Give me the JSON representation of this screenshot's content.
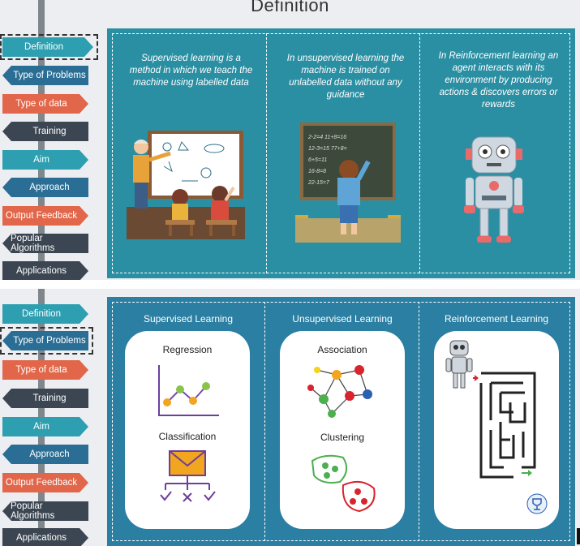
{
  "slide1": {
    "title": "Definition",
    "nav": [
      "Definition",
      "Type of Problems",
      "Type of data",
      "Training",
      "Aim",
      "Approach",
      "Output Feedback",
      "Popular Algorithms",
      "Applications"
    ],
    "columns": [
      "Supervised learning is a method in which we teach the machine using labelled data",
      "In unsupervised learning the machine is trained on unlabelled data without any guidance",
      "In Reinforcement learning an agent interacts with its environment by producing actions & discovers errors or rewards"
    ],
    "chalkboard": [
      "2-2=4   11+8=16",
      "12-3=15  77+8=",
      "6+5=11",
      "16-8=8",
      "22-15=7"
    ]
  },
  "slide2": {
    "nav": [
      "Definition",
      "Type of Problems",
      "Type of data",
      "Training",
      "Aim",
      "Approach",
      "Output Feedback",
      "Popular Algorithms",
      "Applications"
    ],
    "columns": [
      {
        "head": "Supervised Learning",
        "items": [
          "Regression",
          "Classification"
        ]
      },
      {
        "head": "Unsupervised Learning",
        "items": [
          "Association",
          "Clustering"
        ]
      },
      {
        "head": "Reinforcement Learning",
        "items": []
      }
    ]
  },
  "colors": {
    "teal": "#2d9fb0",
    "blue": "#2b6e95",
    "orange": "#e2664a",
    "dark": "#3b4652",
    "panel": "#2b8fa3"
  }
}
